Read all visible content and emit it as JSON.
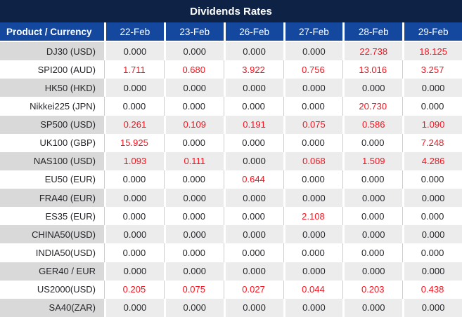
{
  "title": "Dividends Rates",
  "header": {
    "product_label": "Product / Currency",
    "dates": [
      "22-Feb",
      "23-Feb",
      "26-Feb",
      "27-Feb",
      "28-Feb",
      "29-Feb"
    ]
  },
  "rows": [
    {
      "product": "DJ30 (USD)",
      "values": [
        "0.000",
        "0.000",
        "0.000",
        "0.000",
        "22.738",
        "18.125"
      ]
    },
    {
      "product": "SPI200 (AUD)",
      "values": [
        "1.711",
        "0.680",
        "3.922",
        "0.756",
        "13.016",
        "3.257"
      ]
    },
    {
      "product": "HK50 (HKD)",
      "values": [
        "0.000",
        "0.000",
        "0.000",
        "0.000",
        "0.000",
        "0.000"
      ]
    },
    {
      "product": "Nikkei225 (JPN)",
      "values": [
        "0.000",
        "0.000",
        "0.000",
        "0.000",
        "20.730",
        "0.000"
      ]
    },
    {
      "product": "SP500 (USD)",
      "values": [
        "0.261",
        "0.109",
        "0.191",
        "0.075",
        "0.586",
        "1.090"
      ]
    },
    {
      "product": "UK100 (GBP)",
      "values": [
        "15.925",
        "0.000",
        "0.000",
        "0.000",
        "0.000",
        "7.248"
      ]
    },
    {
      "product": "NAS100 (USD)",
      "values": [
        "1.093",
        "0.111",
        "0.000",
        "0.068",
        "1.509",
        "4.286"
      ]
    },
    {
      "product": "EU50 (EUR)",
      "values": [
        "0.000",
        "0.000",
        "0.644",
        "0.000",
        "0.000",
        "0.000"
      ]
    },
    {
      "product": "FRA40 (EUR)",
      "values": [
        "0.000",
        "0.000",
        "0.000",
        "0.000",
        "0.000",
        "0.000"
      ]
    },
    {
      "product": "ES35 (EUR)",
      "values": [
        "0.000",
        "0.000",
        "0.000",
        "2.108",
        "0.000",
        "0.000"
      ]
    },
    {
      "product": "CHINA50(USD)",
      "values": [
        "0.000",
        "0.000",
        "0.000",
        "0.000",
        "0.000",
        "0.000"
      ]
    },
    {
      "product": "INDIA50(USD)",
      "values": [
        "0.000",
        "0.000",
        "0.000",
        "0.000",
        "0.000",
        "0.000"
      ]
    },
    {
      "product": "GER40 / EUR",
      "values": [
        "0.000",
        "0.000",
        "0.000",
        "0.000",
        "0.000",
        "0.000"
      ]
    },
    {
      "product": "US2000(USD)",
      "values": [
        "0.205",
        "0.075",
        "0.027",
        "0.044",
        "0.203",
        "0.438"
      ]
    },
    {
      "product": "SA40(ZAR)",
      "values": [
        "0.000",
        "0.000",
        "0.000",
        "0.000",
        "0.000",
        "0.000"
      ]
    }
  ],
  "zero_value": "0.000",
  "colors": {
    "title_bar_navy": "#0d2244",
    "header_blue": "#14489f",
    "row_gray_label": "#d9d9d9",
    "row_gray_value": "#ececec",
    "separator_gray": "#cccccc",
    "value_red": "#f8121d",
    "text_dark": "#26262b"
  }
}
